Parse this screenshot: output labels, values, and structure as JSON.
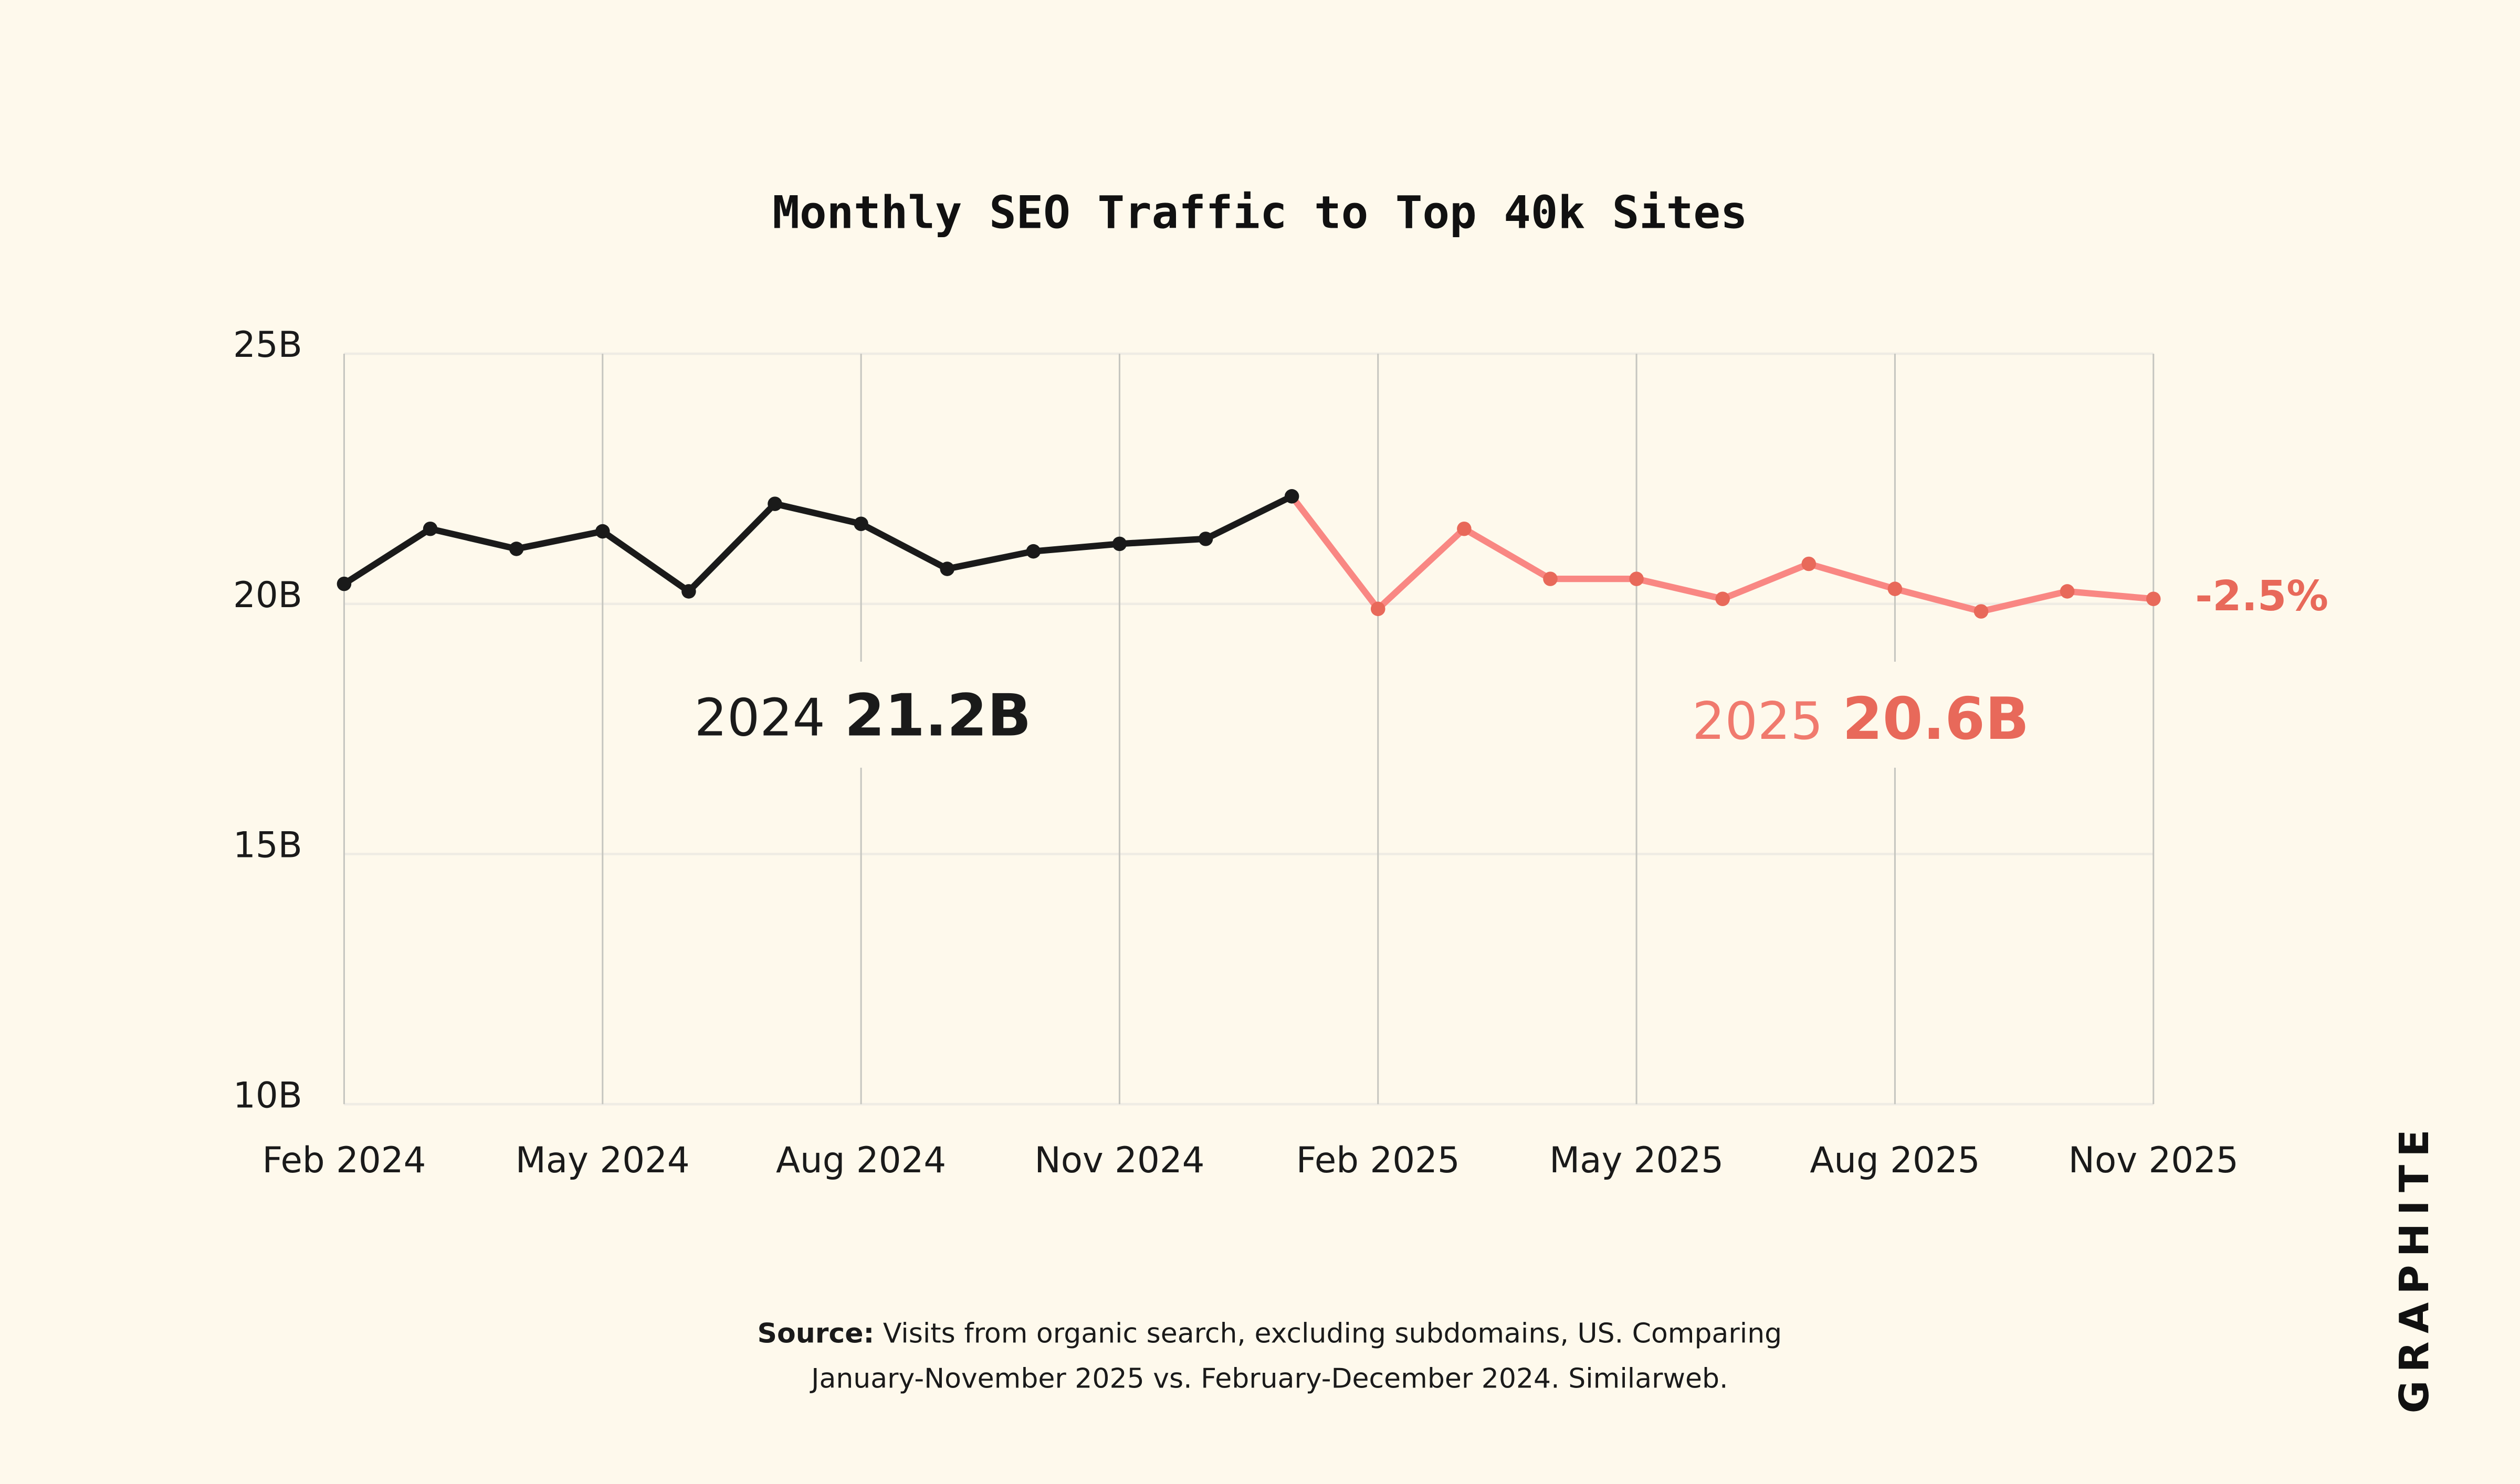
{
  "chart_data": {
    "type": "line",
    "title": "Monthly SEO Traffic to Top 40k Sites",
    "xlabel": "",
    "ylabel": "",
    "ylim": [
      10,
      25
    ],
    "y_ticks": [
      "25B",
      "20B",
      "15B",
      "10B"
    ],
    "y_tick_values": [
      25,
      20,
      15,
      10
    ],
    "x_ticks": [
      "Feb 2024",
      "May 2024",
      "Aug 2024",
      "Nov 2024",
      "Feb 2025",
      "May 2025",
      "Aug 2025",
      "Nov 2025"
    ],
    "x_tick_months": [
      "2024-02",
      "2024-05",
      "2024-08",
      "2024-11",
      "2025-02",
      "2025-05",
      "2025-08",
      "2025-11"
    ],
    "grid": "vertical at x ticks, light horizontal at y ticks",
    "unit": "billions of visits",
    "series": [
      {
        "color": "#1a1a1a",
        "x": [
          "2024-02",
          "2024-03",
          "2024-04",
          "2024-05",
          "2024-06",
          "2024-07",
          "2024-08",
          "2024-09",
          "2024-10",
          "2024-11",
          "2024-12",
          "2025-01"
        ],
        "values": [
          20.4,
          21.5,
          21.1,
          21.45,
          20.25,
          22.0,
          21.6,
          20.7,
          21.05,
          21.2,
          21.3,
          22.15
        ]
      },
      {
        "color": "#f98783",
        "x": [
          "2025-02",
          "2025-03",
          "2025-04",
          "2025-05",
          "2025-06",
          "2025-07",
          "2025-08",
          "2025-09",
          "2025-10",
          "2025-11"
        ],
        "values": [
          19.9,
          21.5,
          20.5,
          20.5,
          20.1,
          20.8,
          20.3,
          19.85,
          20.25,
          20.1
        ]
      }
    ],
    "annotations": {
      "a2024": {
        "year": "2024",
        "value": "21.2B",
        "color": "#1a1a1a"
      },
      "a2025": {
        "year": "2025",
        "value": "20.6B",
        "color": "#e8695a"
      },
      "change": "-2.5%"
    }
  },
  "source": {
    "label": "Source:",
    "line1": " Visits from organic search, excluding subdomains, US. Comparing",
    "line2": "January-November 2025 vs. February-December 2024. Similarweb."
  },
  "logo": "GRAPHITE",
  "colors": {
    "background": "#fef9ec",
    "dark": "#1a1a1a",
    "accent": "#f98783",
    "accent_text": "#e8695a"
  }
}
